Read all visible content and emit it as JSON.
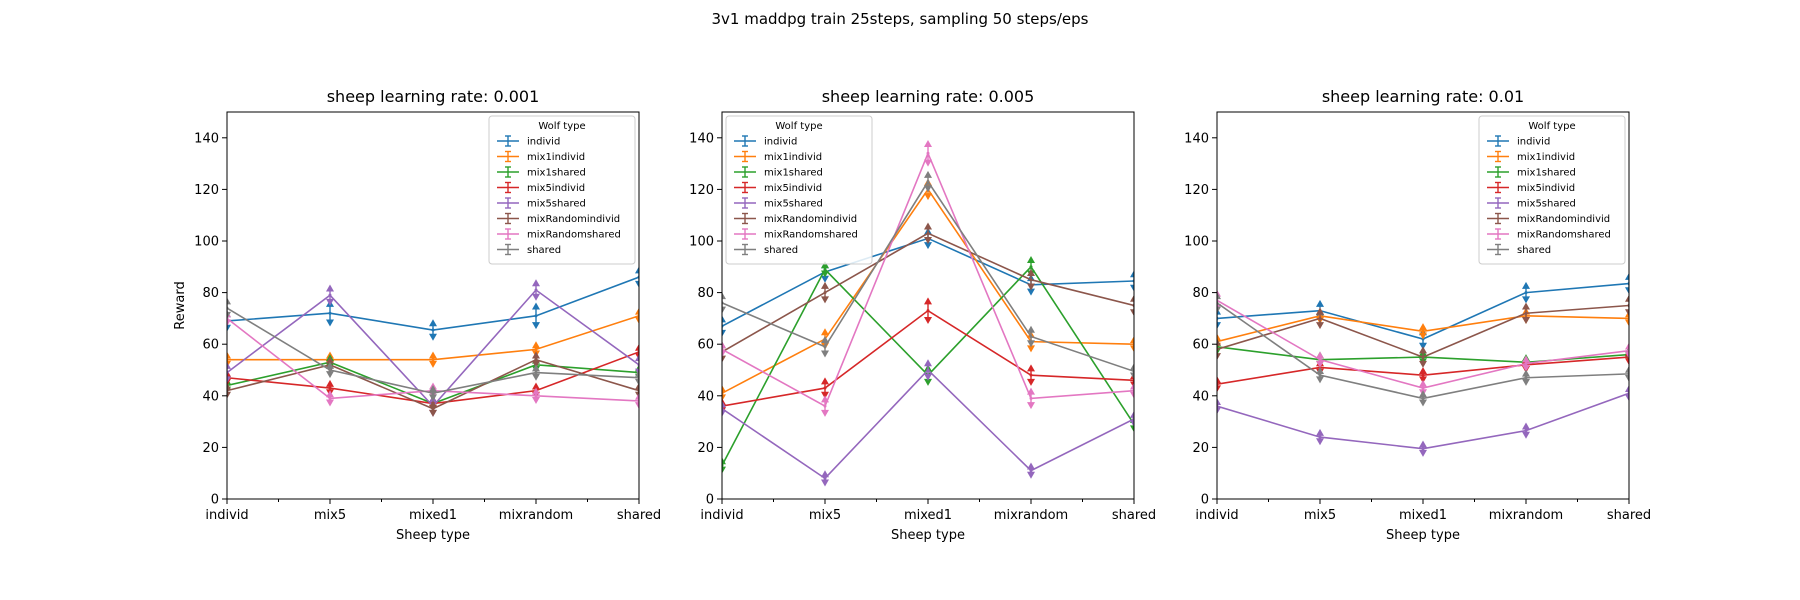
{
  "figure": {
    "suptitle": "3v1 maddpg train 25steps, sampling 50 steps/eps"
  },
  "colors": {
    "individ": "#1f77b4",
    "mix1individ": "#ff7f0e",
    "mix1shared": "#2ca02c",
    "mix5individ": "#d62728",
    "mix5shared": "#9467bd",
    "mixRandomindivid": "#8c564b",
    "mixRandomshared": "#e377c2",
    "shared": "#7f7f7f"
  },
  "chart_data": [
    {
      "type": "line",
      "title": "sheep learning rate: 0.001",
      "xlabel": "Sheep type",
      "ylabel": "Reward",
      "categories": [
        "individ",
        "mix5",
        "mixed1",
        "mixrandom",
        "shared"
      ],
      "ylim": [
        0,
        150
      ],
      "yticks": [
        0,
        20,
        40,
        60,
        80,
        100,
        120,
        140
      ],
      "legend": {
        "title": "Wolf type",
        "position": "top-right"
      },
      "series": [
        {
          "name": "individ",
          "values": [
            69,
            72,
            65.5,
            71,
            86
          ],
          "errors": [
            3,
            4,
            3,
            4,
            3
          ]
        },
        {
          "name": "mix1individ",
          "values": [
            54,
            54,
            54,
            58,
            71
          ],
          "errors": [
            2,
            2,
            2,
            2,
            2
          ]
        },
        {
          "name": "mix1shared",
          "values": [
            44,
            53,
            37,
            52,
            49
          ],
          "errors": [
            2,
            2,
            2,
            2,
            2
          ]
        },
        {
          "name": "mix5individ",
          "values": [
            47,
            43,
            37,
            42,
            57
          ],
          "errors": [
            2,
            2,
            2,
            2,
            2
          ]
        },
        {
          "name": "mix5shared",
          "values": [
            49,
            79,
            36,
            81,
            52
          ],
          "errors": [
            3,
            3,
            3,
            3,
            3
          ]
        },
        {
          "name": "mixRandomindivid",
          "values": [
            42,
            52,
            35,
            54,
            42
          ],
          "errors": [
            2,
            2,
            2,
            2,
            2
          ]
        },
        {
          "name": "mixRandomshared",
          "values": [
            70,
            39,
            42,
            40,
            38
          ],
          "errors": [
            2,
            2,
            2,
            2,
            2
          ]
        },
        {
          "name": "shared",
          "values": [
            74,
            50,
            41,
            49,
            47
          ],
          "errors": [
            3,
            2,
            2,
            2,
            2
          ]
        }
      ]
    },
    {
      "type": "line",
      "title": "sheep learning rate: 0.005",
      "xlabel": "Sheep type",
      "ylabel": "",
      "categories": [
        "individ",
        "mix5",
        "mixed1",
        "mixrandom",
        "shared"
      ],
      "ylim": [
        0,
        150
      ],
      "yticks": [
        0,
        20,
        40,
        60,
        80,
        100,
        120,
        140
      ],
      "legend": {
        "title": "Wolf type",
        "position": "top-left"
      },
      "series": [
        {
          "name": "individ",
          "values": [
            67,
            88,
            101,
            83,
            84.5
          ],
          "errors": [
            3,
            3,
            3,
            3,
            3
          ]
        },
        {
          "name": "mix1individ",
          "values": [
            41,
            62,
            120,
            61,
            60
          ],
          "errors": [
            2,
            3,
            3,
            3,
            2
          ]
        },
        {
          "name": "mix1shared",
          "values": [
            13,
            89,
            48,
            90,
            29
          ],
          "errors": [
            2,
            2,
            3,
            3,
            2
          ]
        },
        {
          "name": "mix5individ",
          "values": [
            36,
            43,
            73,
            48,
            46
          ],
          "errors": [
            2,
            3,
            4,
            3,
            2
          ]
        },
        {
          "name": "mix5shared",
          "values": [
            35,
            8,
            50,
            11,
            31
          ],
          "errors": [
            2,
            2,
            3,
            2,
            2
          ]
        },
        {
          "name": "mixRandomindivid",
          "values": [
            57,
            80,
            103,
            85,
            75
          ],
          "errors": [
            3,
            3,
            3,
            3,
            3
          ]
        },
        {
          "name": "mixRandomshared",
          "values": [
            58,
            36,
            134,
            39,
            42
          ],
          "errors": [
            2,
            3,
            4,
            3,
            2
          ]
        },
        {
          "name": "shared",
          "values": [
            76,
            59,
            123,
            63,
            49.5
          ],
          "errors": [
            3,
            3,
            3,
            3,
            2
          ]
        }
      ]
    },
    {
      "type": "line",
      "title": "sheep learning rate: 0.01",
      "xlabel": "Sheep type",
      "ylabel": "",
      "categories": [
        "individ",
        "mix5",
        "mixed1",
        "mixrandom",
        "shared"
      ],
      "ylim": [
        0,
        150
      ],
      "yticks": [
        0,
        20,
        40,
        60,
        80,
        100,
        120,
        140
      ],
      "legend": {
        "title": "Wolf type",
        "position": "top-right"
      },
      "series": [
        {
          "name": "individ",
          "values": [
            70,
            73,
            62,
            80,
            83.5
          ],
          "errors": [
            3,
            3,
            3,
            3,
            3
          ]
        },
        {
          "name": "mix1individ",
          "values": [
            61,
            71,
            65,
            71,
            70
          ],
          "errors": [
            2,
            2,
            2,
            2,
            2
          ]
        },
        {
          "name": "mix1shared",
          "values": [
            59,
            54,
            55,
            53,
            56
          ],
          "errors": [
            2,
            2,
            2,
            2,
            2
          ]
        },
        {
          "name": "mix5individ",
          "values": [
            44.5,
            51,
            48,
            52,
            55
          ],
          "errors": [
            2,
            2,
            2,
            2,
            2
          ]
        },
        {
          "name": "mix5shared",
          "values": [
            36,
            24,
            19.5,
            26.5,
            41
          ],
          "errors": [
            2,
            2,
            2,
            2,
            2
          ]
        },
        {
          "name": "mixRandomindivid",
          "values": [
            58,
            70,
            55,
            72,
            75
          ],
          "errors": [
            3,
            3,
            3,
            3,
            3
          ]
        },
        {
          "name": "mixRandomshared",
          "values": [
            77,
            54,
            43,
            52.5,
            57.5
          ],
          "errors": [
            3,
            2,
            2,
            2,
            2
          ]
        },
        {
          "name": "shared",
          "values": [
            76,
            48,
            39,
            47,
            48.5
          ],
          "errors": [
            3,
            2,
            2,
            2,
            2
          ]
        }
      ]
    }
  ]
}
